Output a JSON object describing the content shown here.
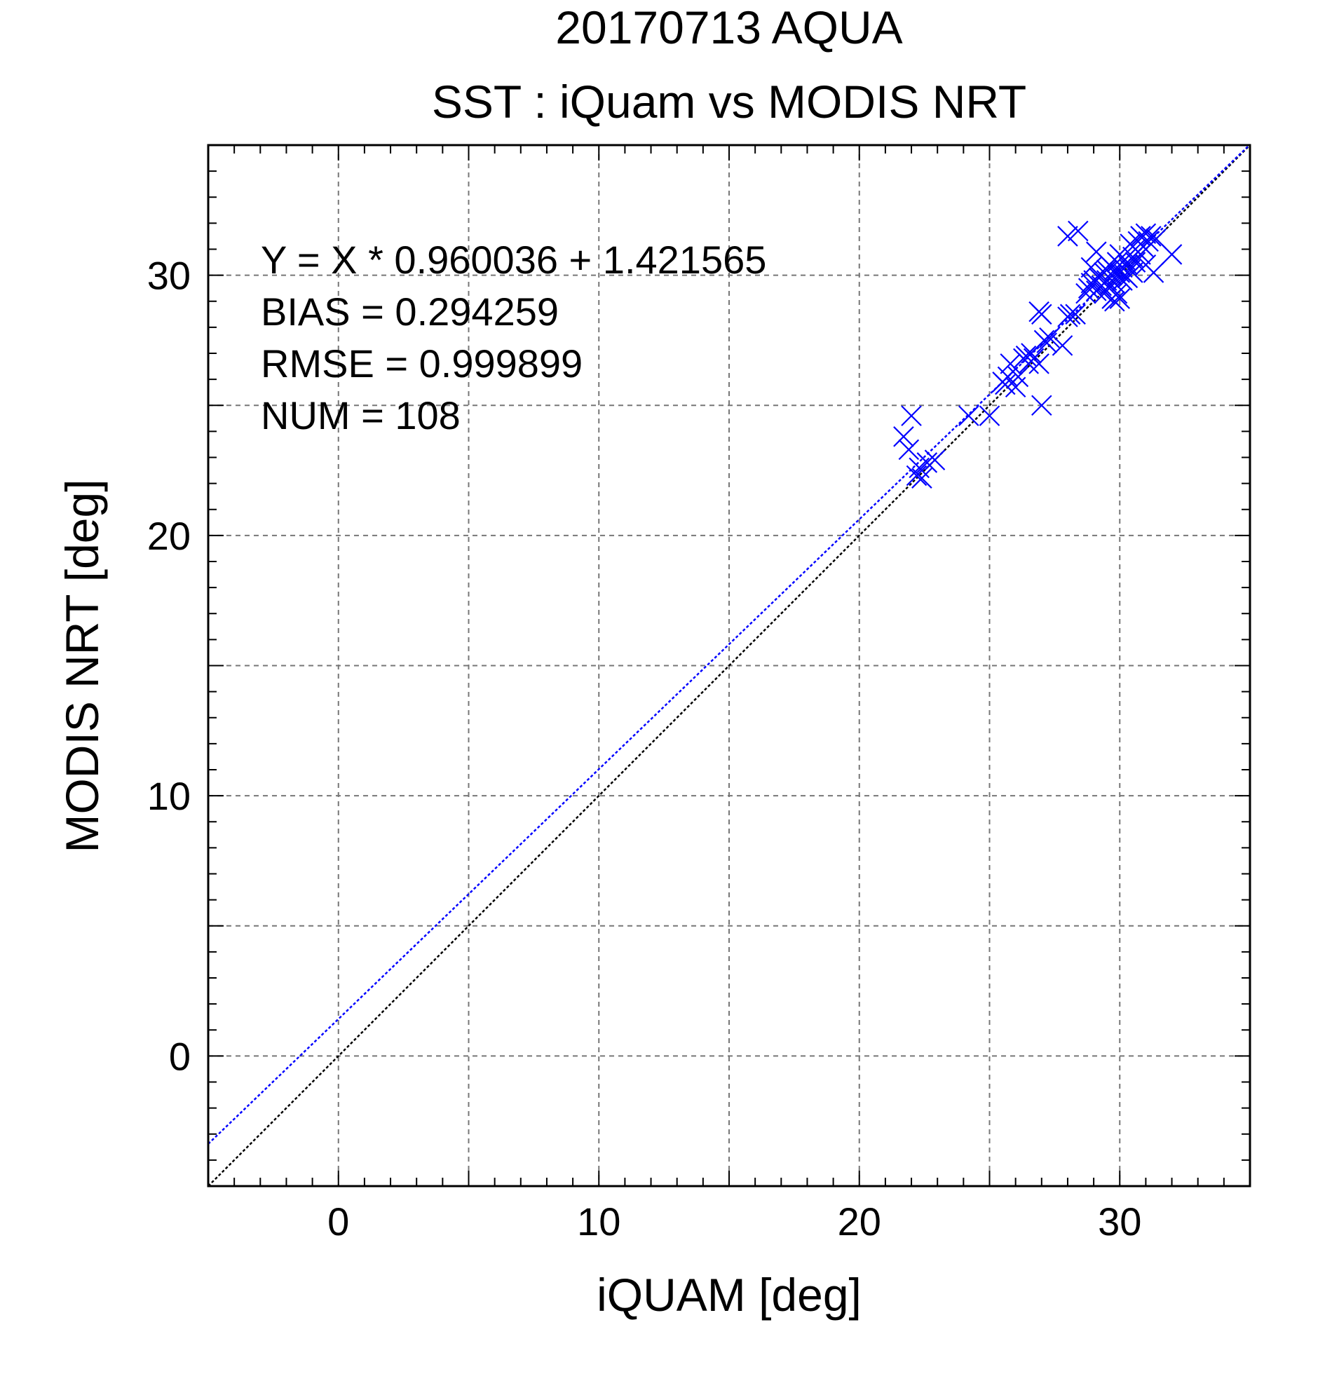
{
  "chart_data": {
    "type": "scatter",
    "title": "20170713 AQUA",
    "subtitle": "SST : iQuam vs MODIS NRT",
    "xlabel": "iQUAM [deg]",
    "ylabel": "MODIS NRT [deg]",
    "xlim": [
      -5,
      35
    ],
    "ylim": [
      -5,
      35
    ],
    "xticks": [
      0,
      10,
      20,
      30
    ],
    "yticks": [
      0,
      10,
      20,
      30
    ],
    "grid": true,
    "grid_step": 5,
    "stats": [
      "Y = X * 0.960036 + 1.421565",
      "BIAS = 0.294259",
      "RMSE = 0.999899",
      "NUM = 108"
    ],
    "fit_line": {
      "slope": 0.960036,
      "intercept": 1.421565,
      "color": "#0000ff"
    },
    "identity_line": {
      "slope": 1,
      "intercept": 0,
      "color": "#000000"
    },
    "marker_color": "#0000ff",
    "marker": "x",
    "points": [
      [
        21.7,
        23.8
      ],
      [
        21.9,
        23.3
      ],
      [
        22.0,
        24.6
      ],
      [
        22.2,
        22.3
      ],
      [
        22.3,
        22.6
      ],
      [
        22.4,
        22.2
      ],
      [
        22.6,
        22.8
      ],
      [
        22.9,
        22.9
      ],
      [
        24.2,
        24.6
      ],
      [
        25.0,
        24.6
      ],
      [
        25.5,
        25.9
      ],
      [
        25.6,
        25.8
      ],
      [
        25.7,
        26.1
      ],
      [
        25.8,
        26.6
      ],
      [
        26.0,
        25.7
      ],
      [
        26.1,
        26.1
      ],
      [
        26.3,
        26.8
      ],
      [
        26.4,
        26.9
      ],
      [
        26.5,
        26.6
      ],
      [
        26.6,
        27.0
      ],
      [
        26.7,
        26.8
      ],
      [
        26.9,
        26.6
      ],
      [
        26.9,
        28.6
      ],
      [
        27.0,
        25.0
      ],
      [
        27.0,
        28.5
      ],
      [
        27.1,
        27.5
      ],
      [
        27.2,
        27.4
      ],
      [
        27.3,
        27.6
      ],
      [
        27.8,
        27.3
      ],
      [
        28.0,
        31.5
      ],
      [
        28.0,
        28.4
      ],
      [
        28.1,
        28.5
      ],
      [
        28.3,
        28.5
      ],
      [
        28.4,
        31.7
      ],
      [
        28.7,
        29.3
      ],
      [
        28.8,
        29.5
      ],
      [
        28.9,
        30.3
      ],
      [
        28.9,
        29.7
      ],
      [
        29.0,
        29.8
      ],
      [
        29.1,
        30.9
      ],
      [
        29.1,
        29.4
      ],
      [
        29.2,
        29.9
      ],
      [
        29.3,
        29.6
      ],
      [
        29.4,
        30.1
      ],
      [
        29.4,
        29.3
      ],
      [
        29.5,
        30.2
      ],
      [
        29.5,
        29.8
      ],
      [
        29.6,
        29.6
      ],
      [
        29.6,
        30.4
      ],
      [
        29.7,
        29.1
      ],
      [
        29.7,
        30.0
      ],
      [
        29.8,
        30.2
      ],
      [
        29.8,
        29.7
      ],
      [
        29.8,
        29.0
      ],
      [
        29.9,
        30.5
      ],
      [
        29.9,
        30.0
      ],
      [
        29.9,
        29.3
      ],
      [
        30.0,
        30.8
      ],
      [
        30.0,
        30.1
      ],
      [
        30.0,
        29.1
      ],
      [
        30.1,
        29.8
      ],
      [
        30.1,
        30.3
      ],
      [
        30.2,
        30.0
      ],
      [
        30.2,
        30.6
      ],
      [
        30.3,
        29.9
      ],
      [
        30.3,
        30.4
      ],
      [
        30.4,
        31.2
      ],
      [
        30.4,
        30.2
      ],
      [
        30.5,
        30.7
      ],
      [
        30.5,
        30.1
      ],
      [
        30.6,
        31.0
      ],
      [
        30.6,
        30.5
      ],
      [
        30.7,
        31.3
      ],
      [
        30.8,
        30.8
      ],
      [
        30.8,
        31.5
      ],
      [
        30.9,
        31.1
      ],
      [
        31.0,
        30.4
      ],
      [
        31.0,
        31.6
      ],
      [
        31.1,
        31.3
      ],
      [
        31.2,
        31.5
      ],
      [
        31.3,
        30.1
      ],
      [
        31.4,
        31.4
      ],
      [
        32.0,
        30.8
      ]
    ]
  }
}
